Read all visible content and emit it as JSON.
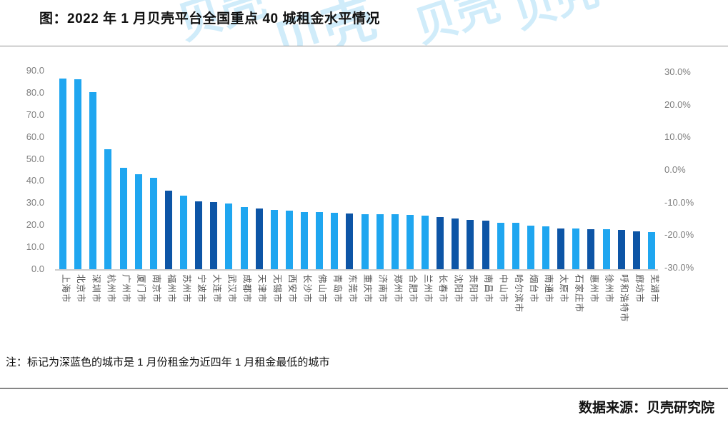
{
  "header": {
    "title": "图：2022 年 1 月贝壳平台全国重点 40 城租金水平情况"
  },
  "watermark": {
    "text": "贝壳",
    "color": "#29a9ea"
  },
  "note": "注：标记为深蓝色的城市是 1 月份租金为近四年 1 月租金最低的城市",
  "source": "数据来源：贝壳研究院",
  "chart_data": {
    "type": "bar",
    "title": "2022 年 1 月贝壳平台全国重点 40 城租金水平情况",
    "categories": [
      "上海市",
      "北京市",
      "深圳市",
      "杭州市",
      "广州市",
      "厦门市",
      "南京市",
      "福州市",
      "苏州市",
      "宁波市",
      "大连市",
      "武汉市",
      "成都市",
      "天津市",
      "无锡市",
      "西安市",
      "长沙市",
      "佛山市",
      "青岛市",
      "东莞市",
      "重庆市",
      "济南市",
      "郑州市",
      "合肥市",
      "兰州市",
      "长春市",
      "沈阳市",
      "贵阳市",
      "南昌市",
      "中山市",
      "哈尔滨市",
      "烟台市",
      "南通市",
      "太原市",
      "石家庄市",
      "惠州市",
      "徐州市",
      "呼和浩特市",
      "廊坊市",
      "芜湖市"
    ],
    "values": [
      86.4,
      86.0,
      80.2,
      54.3,
      46.0,
      43.2,
      41.5,
      35.6,
      33.5,
      30.8,
      30.4,
      29.8,
      28.2,
      27.4,
      27.0,
      26.6,
      26.0,
      25.8,
      25.5,
      25.2,
      25.0,
      24.9,
      24.8,
      24.6,
      24.3,
      23.6,
      23.0,
      22.3,
      22.1,
      21.0,
      20.9,
      19.9,
      19.4,
      18.5,
      18.4,
      18.2,
      18.1,
      17.9,
      17.0,
      16.8
    ],
    "is_lowest_in_four_years": [
      false,
      false,
      false,
      false,
      false,
      false,
      false,
      true,
      false,
      true,
      true,
      false,
      false,
      true,
      false,
      false,
      false,
      false,
      false,
      true,
      false,
      false,
      false,
      false,
      false,
      true,
      true,
      true,
      true,
      false,
      false,
      false,
      false,
      true,
      false,
      true,
      false,
      true,
      true,
      false
    ],
    "colors": {
      "default": "#1fa6f0",
      "lowest": "#0d55a6"
    },
    "left_axis": {
      "ticks": [
        "90.0",
        "80.0",
        "70.0",
        "60.0",
        "50.0",
        "40.0",
        "30.0",
        "20.0",
        "10.0",
        "0.0"
      ],
      "range": [
        0,
        90
      ]
    },
    "right_axis": {
      "ticks": [
        "30.0%",
        "20.0%",
        "10.0%",
        "0.0%",
        "-10.0%",
        "-20.0%",
        "-30.0%"
      ],
      "range": [
        -30,
        30
      ]
    },
    "grid": false,
    "legend": "none"
  }
}
